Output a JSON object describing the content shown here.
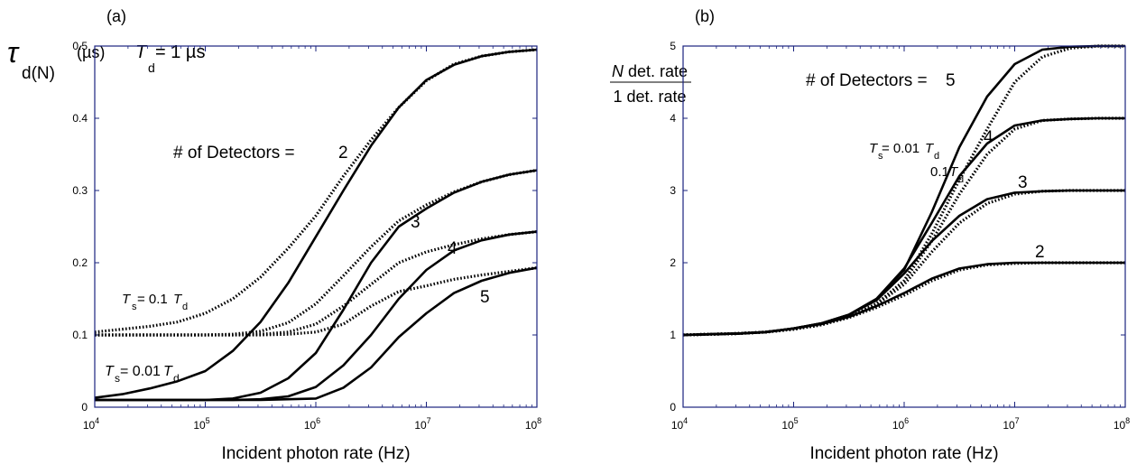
{
  "chart_data": [
    {
      "panel_label": "(a)",
      "type": "line",
      "xlabel": "Incident photon rate (Hz)",
      "x_scale": "log",
      "xlim": [
        10000,
        100000000
      ],
      "x_ticks": [
        10000,
        100000,
        1000000,
        10000000,
        100000000
      ],
      "x_tick_labels": [
        [
          "10",
          "4"
        ],
        [
          "10",
          "5"
        ],
        [
          "10",
          "6"
        ],
        [
          "10",
          "7"
        ],
        [
          "10",
          "8"
        ]
      ],
      "ylim": [
        0,
        0.5
      ],
      "y_ticks": [
        0,
        0.1,
        0.2,
        0.3,
        0.4,
        0.5
      ],
      "y_tick_labels": [
        "0",
        "0.1",
        "0.2",
        "0.3",
        "0.4",
        "0.5"
      ],
      "ylabel": {
        "symbol": "τ",
        "sub": "d(N)",
        "unit": "(µs)"
      },
      "td_label": {
        "t": "T",
        "sub": "d",
        "rest": "= 1 µs"
      },
      "annotations": {
        "detectors": "# of Detectors =",
        "n2": "2",
        "n3": "3",
        "n4": "4",
        "n5": "5",
        "ts_01": {
          "t": "T",
          "sub1": "s",
          "mid": "= 0.1 ",
          "t2": "T",
          "sub2": "d"
        },
        "ts_001": {
          "t": "T",
          "sub1": "s",
          "mid": "= 0.01 ",
          "t2": "T",
          "sub2": "d"
        }
      },
      "x": [
        10000,
        17780,
        31620,
        56230,
        100000,
        177800,
        316200,
        562300,
        1000000,
        1778000,
        3162000,
        5623000,
        10000000,
        17780000,
        31620000,
        56230000,
        100000000
      ],
      "series": [
        {
          "style": "solid",
          "values": [
            0.013,
            0.018,
            0.026,
            0.036,
            0.05,
            0.078,
            0.118,
            0.172,
            0.236,
            0.3,
            0.362,
            0.415,
            0.453,
            0.474,
            0.486,
            0.492,
            0.495
          ]
        },
        {
          "style": "solid",
          "values": [
            0.01,
            0.01,
            0.01,
            0.01,
            0.01,
            0.012,
            0.02,
            0.04,
            0.075,
            0.135,
            0.2,
            0.25,
            0.275,
            0.297,
            0.312,
            0.322,
            0.328
          ]
        },
        {
          "style": "solid",
          "values": [
            0.01,
            0.01,
            0.01,
            0.01,
            0.01,
            0.01,
            0.011,
            0.015,
            0.028,
            0.058,
            0.1,
            0.15,
            0.19,
            0.217,
            0.231,
            0.239,
            0.243
          ]
        },
        {
          "style": "solid",
          "values": [
            0.01,
            0.01,
            0.01,
            0.01,
            0.01,
            0.01,
            0.01,
            0.011,
            0.012,
            0.027,
            0.055,
            0.097,
            0.13,
            0.158,
            0.175,
            0.186,
            0.193
          ]
        },
        {
          "style": "dotted",
          "values": [
            0.104,
            0.108,
            0.112,
            0.118,
            0.13,
            0.15,
            0.18,
            0.22,
            0.265,
            0.32,
            0.37,
            0.415,
            0.452,
            0.475,
            0.486,
            0.492,
            0.495
          ]
        },
        {
          "style": "dotted",
          "values": [
            0.1,
            0.1,
            0.1,
            0.1,
            0.1,
            0.101,
            0.105,
            0.117,
            0.143,
            0.182,
            0.222,
            0.258,
            0.28,
            0.298,
            0.312,
            0.322,
            0.328
          ]
        },
        {
          "style": "dotted",
          "values": [
            0.1,
            0.1,
            0.1,
            0.1,
            0.1,
            0.1,
            0.101,
            0.104,
            0.115,
            0.14,
            0.17,
            0.2,
            0.215,
            0.225,
            0.233,
            0.239,
            0.243
          ]
        },
        {
          "style": "dotted",
          "values": [
            0.1,
            0.1,
            0.1,
            0.1,
            0.1,
            0.1,
            0.1,
            0.101,
            0.104,
            0.115,
            0.14,
            0.16,
            0.168,
            0.177,
            0.183,
            0.188,
            0.193
          ]
        }
      ]
    },
    {
      "panel_label": "(b)",
      "type": "line",
      "xlabel": "Incident photon rate (Hz)",
      "x_scale": "log",
      "xlim": [
        10000,
        100000000
      ],
      "x_ticks": [
        10000,
        100000,
        1000000,
        10000000,
        100000000
      ],
      "x_tick_labels": [
        [
          "10",
          "4"
        ],
        [
          "10",
          "5"
        ],
        [
          "10",
          "6"
        ],
        [
          "10",
          "7"
        ],
        [
          "10",
          "8"
        ]
      ],
      "ylim": [
        0,
        5
      ],
      "y_ticks": [
        0,
        1,
        2,
        3,
        4,
        5
      ],
      "y_tick_labels": [
        "0",
        "1",
        "2",
        "3",
        "4",
        "5"
      ],
      "ylabel": {
        "numerator_n": "N",
        "numerator_rest": " det. rate",
        "denominator": "1 det. rate"
      },
      "annotations": {
        "detectors": "# of Detectors =",
        "n2": "2",
        "n3": "3",
        "n4": "4",
        "n5": "5",
        "ts_001": {
          "t": "T",
          "sub1": "s",
          "mid": " = 0.01",
          "t2": "T",
          "sub2": "d"
        },
        "td_01": {
          "pre": "0.1",
          "t": "T",
          "sub": "d"
        }
      },
      "x": [
        10000,
        17780,
        31620,
        56230,
        100000,
        177800,
        316200,
        562300,
        1000000,
        1778000,
        3162000,
        5623000,
        10000000,
        17780000,
        31620000,
        56230000,
        100000000
      ],
      "series": [
        {
          "style": "solid",
          "values": [
            1.0,
            1.01,
            1.02,
            1.04,
            1.09,
            1.16,
            1.28,
            1.5,
            1.9,
            2.7,
            3.6,
            4.3,
            4.75,
            4.95,
            4.99,
            5.0,
            5.0
          ]
        },
        {
          "style": "solid",
          "values": [
            1.0,
            1.01,
            1.02,
            1.04,
            1.09,
            1.16,
            1.28,
            1.5,
            1.92,
            2.55,
            3.2,
            3.65,
            3.9,
            3.97,
            3.99,
            4.0,
            4.0
          ]
        },
        {
          "style": "solid",
          "values": [
            1.0,
            1.01,
            1.02,
            1.04,
            1.09,
            1.16,
            1.28,
            1.48,
            1.85,
            2.3,
            2.65,
            2.88,
            2.97,
            2.99,
            3.0,
            3.0,
            3.0
          ]
        },
        {
          "style": "solid",
          "values": [
            1.0,
            1.01,
            1.02,
            1.04,
            1.09,
            1.15,
            1.25,
            1.4,
            1.58,
            1.78,
            1.92,
            1.98,
            2.0,
            2.0,
            2.0,
            2.0,
            2.0
          ]
        },
        {
          "style": "dotted",
          "values": [
            1.0,
            1.01,
            1.02,
            1.04,
            1.08,
            1.14,
            1.25,
            1.43,
            1.75,
            2.4,
            3.15,
            3.85,
            4.5,
            4.85,
            4.97,
            5.0,
            5.0
          ]
        },
        {
          "style": "dotted",
          "values": [
            1.0,
            1.01,
            1.02,
            1.04,
            1.08,
            1.14,
            1.25,
            1.43,
            1.75,
            2.3,
            2.95,
            3.5,
            3.85,
            3.97,
            3.99,
            4.0,
            4.0
          ]
        },
        {
          "style": "dotted",
          "values": [
            1.0,
            1.01,
            1.02,
            1.04,
            1.08,
            1.14,
            1.25,
            1.42,
            1.7,
            2.15,
            2.55,
            2.82,
            2.95,
            2.99,
            3.0,
            3.0,
            3.0
          ]
        },
        {
          "style": "dotted",
          "values": [
            1.0,
            1.01,
            1.02,
            1.04,
            1.08,
            1.14,
            1.24,
            1.38,
            1.55,
            1.75,
            1.9,
            1.97,
            1.99,
            2.0,
            2.0,
            2.0,
            2.0
          ]
        }
      ]
    }
  ]
}
